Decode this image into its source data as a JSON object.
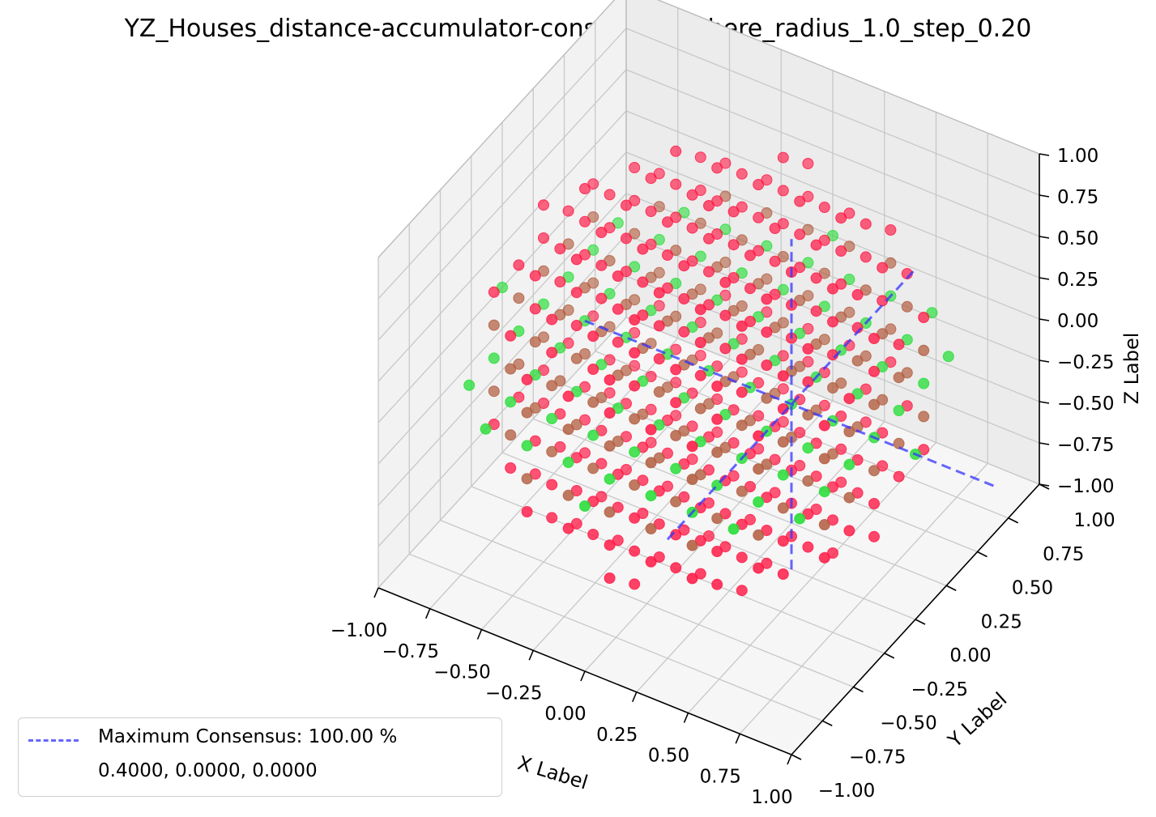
{
  "chart_data": {
    "type": "scatter",
    "projection": "3d",
    "title": "YZ_Houses_distance-accumulator-consensus_sphere_radius_1.0_step_0.20",
    "xlabel": "X Label",
    "ylabel": "Y Label",
    "zlabel": "Z Label",
    "xlim": [
      -1.0,
      1.0
    ],
    "ylim": [
      -1.0,
      1.0
    ],
    "zlim": [
      -1.0,
      1.0
    ],
    "x_ticks": [
      "−1.00",
      "−0.75",
      "−0.50",
      "−0.25",
      "0.00",
      "0.25",
      "0.50",
      "0.75",
      "1.00"
    ],
    "y_ticks": [
      "−1.00",
      "−0.75",
      "−0.50",
      "−0.25",
      "0.00",
      "0.25",
      "0.50",
      "0.75",
      "1.00"
    ],
    "z_ticks": [
      "−1.00",
      "−0.75",
      "−0.50",
      "−0.25",
      "0.00",
      "0.25",
      "0.50",
      "0.75",
      "1.00"
    ],
    "tick_values": [
      -1.0,
      -0.75,
      -0.5,
      -0.25,
      0.0,
      0.25,
      0.5,
      0.75,
      1.0
    ],
    "grid": true,
    "points": {
      "shape": "sphere",
      "radius": 1.0,
      "step": 0.2,
      "color_low": "#ff1744",
      "color_high": "#22dd33",
      "note_color": "color encodes consensus; green on the plane z = 0, red elsewhere"
    },
    "maximum": {
      "x": 0.4,
      "y": 0.0,
      "z": 0.0,
      "consensus_pct": 100.0,
      "line_color": "#3333ff"
    },
    "legend": {
      "placement": "lower-left",
      "label": "Maximum Consensus: 100.00 %",
      "coords": "0.4000, 0.0000, 0.0000"
    }
  }
}
